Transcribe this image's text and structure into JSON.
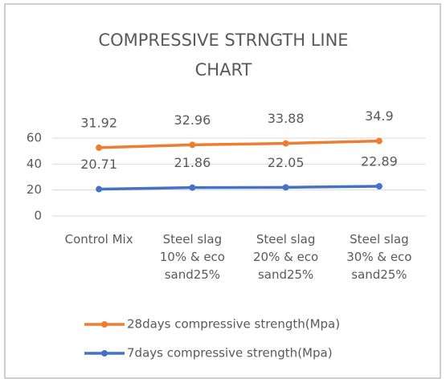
{
  "chart_data": {
    "type": "line",
    "stacked": true,
    "title": "COMPRESSIVE STRNGTH LINE CHART",
    "categories": [
      "Control Mix",
      "Steel slag 10% & eco sand25%",
      "Steel slag 20% & eco sand25%",
      "Steel slag 30% & eco sand25%"
    ],
    "series": [
      {
        "name": "28days compressive strength(Mpa)",
        "color": "#ed7d31",
        "values": [
          31.92,
          32.96,
          33.88,
          34.9
        ]
      },
      {
        "name": "7days compressive strength(Mpa)",
        "color": "#4472c4",
        "values": [
          20.71,
          21.86,
          22.05,
          22.89
        ]
      }
    ],
    "ylim": [
      0,
      60
    ],
    "yticks": [
      0,
      20,
      40,
      60
    ],
    "grid": true,
    "legend": "bottom"
  }
}
